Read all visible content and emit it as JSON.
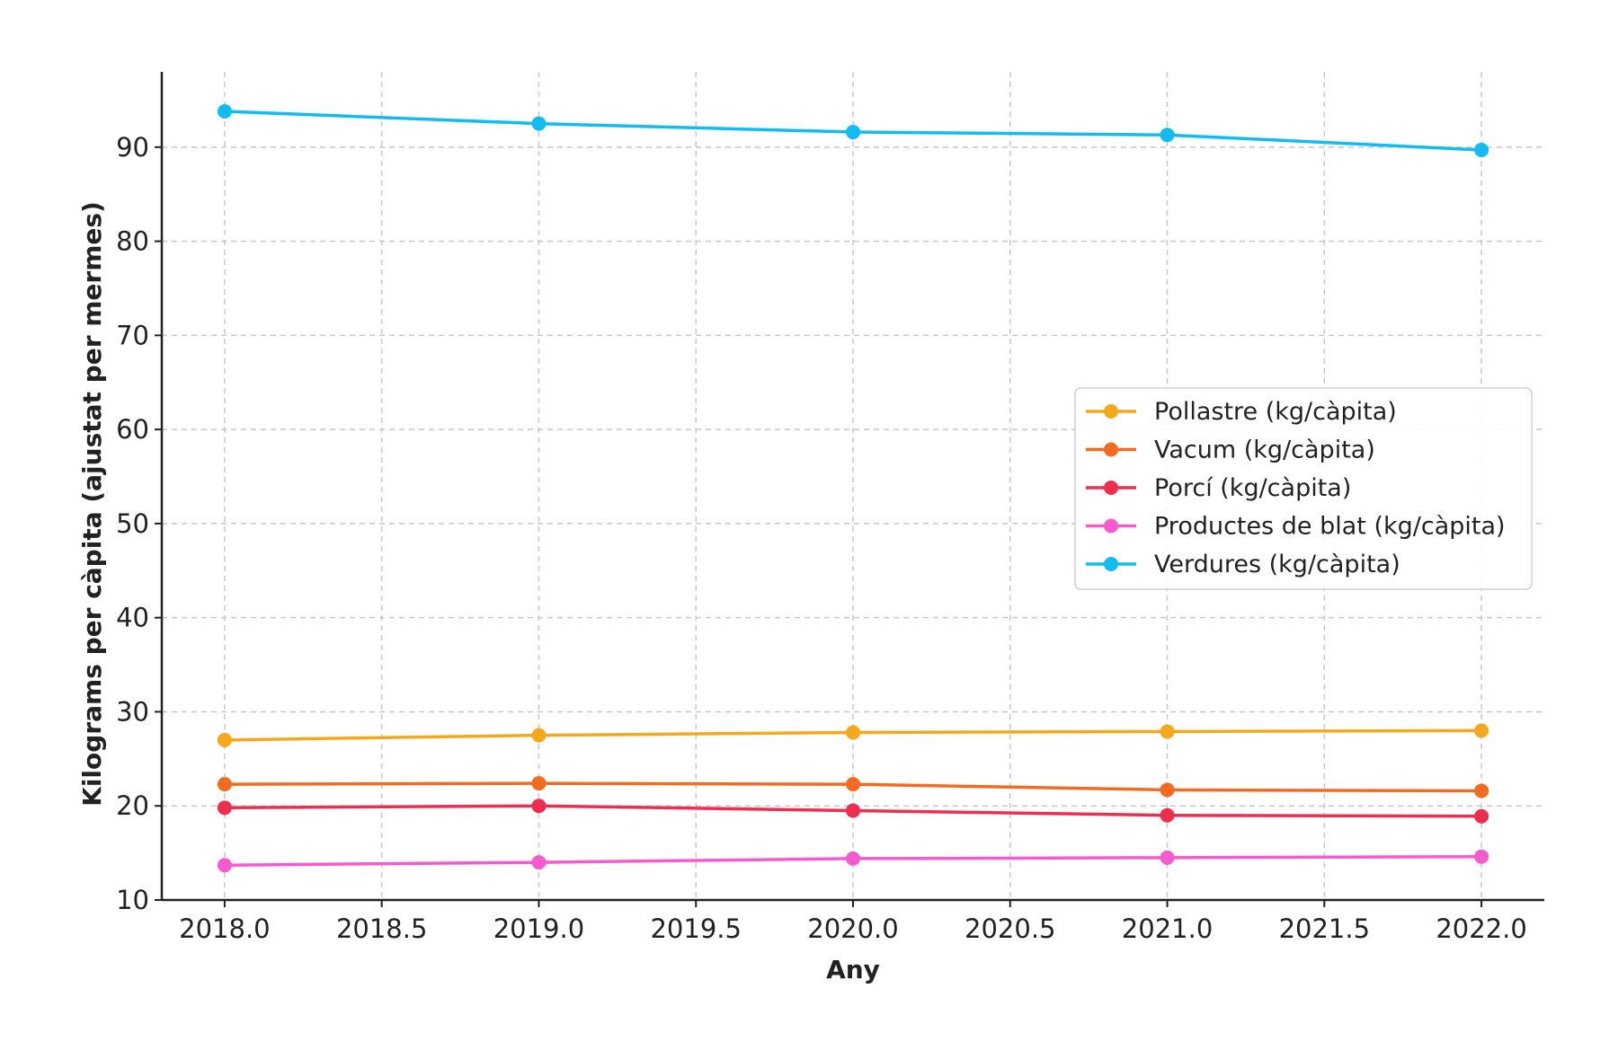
{
  "chart_data": {
    "type": "line",
    "xlabel": "Any",
    "ylabel": "Kilograms per càpita (ajustat per mermes)",
    "xlim": [
      2017.8,
      2022.2
    ],
    "ylim": [
      10,
      98
    ],
    "xticks": [
      2018.0,
      2018.5,
      2019.0,
      2019.5,
      2020.0,
      2020.5,
      2021.0,
      2021.5,
      2022.0
    ],
    "xtick_labels": [
      "2018.0",
      "2018.5",
      "2019.0",
      "2019.5",
      "2020.0",
      "2020.5",
      "2021.0",
      "2021.5",
      "2022.0"
    ],
    "yticks": [
      10,
      20,
      30,
      40,
      50,
      60,
      70,
      80,
      90
    ],
    "ytick_labels": [
      "10",
      "20",
      "30",
      "40",
      "50",
      "60",
      "70",
      "80",
      "90"
    ],
    "grid": true,
    "legend_position": "center-right",
    "x": [
      2018,
      2019,
      2020,
      2021,
      2022
    ],
    "series": [
      {
        "name": "Pollastre (kg/càpita)",
        "color": "#f5a81c",
        "values": [
          27.0,
          27.5,
          27.8,
          27.9,
          28.0
        ]
      },
      {
        "name": "Vacum (kg/càpita)",
        "color": "#f26b21",
        "values": [
          22.3,
          22.4,
          22.3,
          21.7,
          21.6
        ]
      },
      {
        "name": "Porcí (kg/càpita)",
        "color": "#ee2d4f",
        "values": [
          19.8,
          20.0,
          19.5,
          19.0,
          18.9
        ]
      },
      {
        "name": "Productes de blat (kg/càpita)",
        "color": "#f55bcf",
        "values": [
          13.7,
          14.0,
          14.4,
          14.5,
          14.6
        ]
      },
      {
        "name": "Verdures (kg/càpita)",
        "color": "#12bbf0",
        "values": [
          93.8,
          92.5,
          91.6,
          91.3,
          89.7
        ]
      }
    ]
  }
}
